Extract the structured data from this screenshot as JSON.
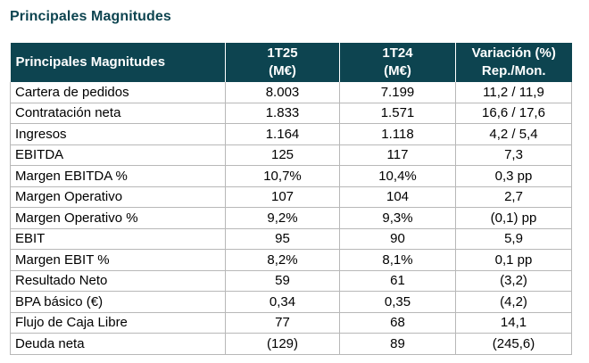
{
  "title": "Principales Magnitudes",
  "table": {
    "header": {
      "label": "Principales Magnitudes",
      "col1": [
        "1T25",
        "(M€)"
      ],
      "col2": [
        "1T24",
        "(M€)"
      ],
      "col3": [
        "Variación (%)",
        "Rep./Mon."
      ]
    },
    "rows": [
      {
        "label": "Cartera de pedidos",
        "t25": "8.003",
        "t24": "7.199",
        "var": "11,2 / 11,9"
      },
      {
        "label": "Contratación neta",
        "t25": "1.833",
        "t24": "1.571",
        "var": "16,6 / 17,6"
      },
      {
        "label": "Ingresos",
        "t25": "1.164",
        "t24": "1.118",
        "var": "4,2 / 5,4"
      },
      {
        "label": "EBITDA",
        "t25": "125",
        "t24": "117",
        "var": "7,3"
      },
      {
        "label": "Margen EBITDA %",
        "t25": "10,7%",
        "t24": "10,4%",
        "var": "0,3 pp"
      },
      {
        "label": "Margen Operativo",
        "t25": "107",
        "t24": "104",
        "var": "2,7"
      },
      {
        "label": "Margen Operativo %",
        "t25": "9,2%",
        "t24": "9,3%",
        "var": "(0,1) pp"
      },
      {
        "label": "EBIT",
        "t25": "95",
        "t24": "90",
        "var": "5,9"
      },
      {
        "label": "Margen EBIT %",
        "t25": "8,2%",
        "t24": "8,1%",
        "var": "0,1 pp"
      },
      {
        "label": "Resultado Neto",
        "t25": "59",
        "t24": "61",
        "var": "(3,2)"
      },
      {
        "label": "BPA básico (€)",
        "t25": "0,34",
        "t24": "0,35",
        "var": "(4,2)"
      },
      {
        "label": "Flujo de Caja Libre",
        "t25": "77",
        "t24": "68",
        "var": "14,1"
      },
      {
        "label": "Deuda neta",
        "t25": "(129)",
        "t24": "89",
        "var": "(245,6)"
      }
    ]
  },
  "colors": {
    "header_bg": "#0d4450",
    "title": "#0d4450",
    "grid": "#b8b8b8"
  }
}
